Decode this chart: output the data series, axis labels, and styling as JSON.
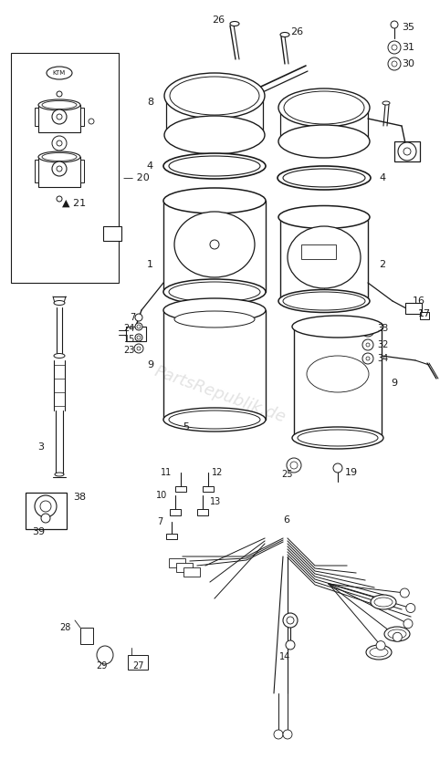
{
  "bg_color": "#ffffff",
  "fig_width": 4.82,
  "fig_height": 8.32,
  "dpi": 100,
  "watermark": "PartsRepublik.de",
  "line_color": "#1a1a1a",
  "label_color": "#111111",
  "label_fs": 8,
  "small_fs": 7
}
